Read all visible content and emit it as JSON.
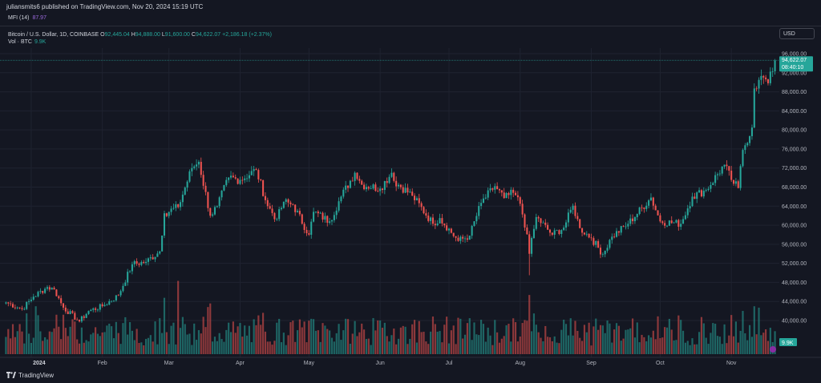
{
  "header": {
    "published": "juliansmits6 published on TradingView.com, Nov 20, 2024 15:19 UTC"
  },
  "mfi": {
    "label": "MFI (14)",
    "value": "87.97"
  },
  "legend": {
    "symbol": "Bitcoin / U.S. Dollar, 1D, COINBASE",
    "o_label": "O",
    "o": "92,445.04",
    "h_label": "H",
    "h": "94,888.00",
    "l_label": "L",
    "l": "91,600.00",
    "c_label": "C",
    "c": "94,622.07",
    "change": "+2,186.18 (+2.37%)",
    "vol_label": "Vol · BTC",
    "vol": "9.9K"
  },
  "currency_button": "USD",
  "footer": {
    "brand": "TradingView"
  },
  "colors": {
    "up": "#26a69a",
    "down": "#ef5350",
    "background": "#141722",
    "grid": "#1f2330"
  },
  "chart_data": {
    "type": "candlestick",
    "title": "Bitcoin / U.S. Dollar, 1D, COINBASE",
    "y_ticks": [
      "96,000.00",
      "92,000.00",
      "88,000.00",
      "84,000.00",
      "80,000.00",
      "76,000.00",
      "72,000.00",
      "68,000.00",
      "64,000.00",
      "60,000.00",
      "56,000.00",
      "52,000.00",
      "48,000.00",
      "44,000.00",
      "40,000.00"
    ],
    "ylim": [
      38000,
      98000
    ],
    "x_ticks": [
      {
        "label": "2024",
        "date": "2024-01-01"
      },
      {
        "label": "Feb",
        "date": "2024-02-01"
      },
      {
        "label": "Mar",
        "date": "2024-03-01"
      },
      {
        "label": "Apr",
        "date": "2024-04-01"
      },
      {
        "label": "May",
        "date": "2024-05-01"
      },
      {
        "label": "Jun",
        "date": "2024-06-01"
      },
      {
        "label": "Jul",
        "date": "2024-07-01"
      },
      {
        "label": "Aug",
        "date": "2024-08-01"
      },
      {
        "label": "Sep",
        "date": "2024-09-01"
      },
      {
        "label": "Oct",
        "date": "2024-10-01"
      },
      {
        "label": "Nov",
        "date": "2024-11-01"
      }
    ],
    "start_date": "2023-12-21",
    "close_anchors": [
      [
        "2023-12-21",
        43800
      ],
      [
        "2023-12-28",
        42400
      ],
      [
        "2024-01-02",
        45000
      ],
      [
        "2024-01-08",
        47000
      ],
      [
        "2024-01-11",
        46500
      ],
      [
        "2024-01-15",
        42700
      ],
      [
        "2024-01-22",
        39800
      ],
      [
        "2024-01-26",
        42000
      ],
      [
        "2024-02-01",
        43000
      ],
      [
        "2024-02-08",
        45300
      ],
      [
        "2024-02-14",
        51800
      ],
      [
        "2024-02-20",
        52300
      ],
      [
        "2024-02-26",
        54500
      ],
      [
        "2024-02-28",
        62500
      ],
      [
        "2024-03-05",
        63800
      ],
      [
        "2024-03-11",
        72000
      ],
      [
        "2024-03-14",
        73300
      ],
      [
        "2024-03-19",
        62000
      ],
      [
        "2024-03-22",
        64000
      ],
      [
        "2024-03-27",
        70000
      ],
      [
        "2024-04-01",
        69500
      ],
      [
        "2024-04-08",
        71600
      ],
      [
        "2024-04-13",
        64000
      ],
      [
        "2024-04-17",
        61300
      ],
      [
        "2024-04-20",
        64900
      ],
      [
        "2024-04-24",
        64300
      ],
      [
        "2024-05-01",
        58000
      ],
      [
        "2024-05-03",
        62800
      ],
      [
        "2024-05-10",
        60800
      ],
      [
        "2024-05-15",
        66000
      ],
      [
        "2024-05-21",
        71000
      ],
      [
        "2024-05-24",
        68500
      ],
      [
        "2024-06-01",
        67700
      ],
      [
        "2024-06-06",
        71000
      ],
      [
        "2024-06-07",
        69300
      ],
      [
        "2024-06-15",
        66200
      ],
      [
        "2024-06-24",
        60300
      ],
      [
        "2024-06-27",
        61500
      ],
      [
        "2024-07-05",
        56700
      ],
      [
        "2024-07-10",
        57800
      ],
      [
        "2024-07-15",
        64700
      ],
      [
        "2024-07-21",
        68200
      ],
      [
        "2024-07-25",
        65700
      ],
      [
        "2024-07-29",
        66800
      ],
      [
        "2024-08-01",
        64500
      ],
      [
        "2024-08-04",
        58100
      ],
      [
        "2024-08-05",
        54000
      ],
      [
        "2024-08-08",
        61700
      ],
      [
        "2024-08-15",
        58000
      ],
      [
        "2024-08-20",
        59500
      ],
      [
        "2024-08-24",
        64100
      ],
      [
        "2024-08-27",
        59400
      ],
      [
        "2024-09-01",
        57300
      ],
      [
        "2024-09-06",
        53900
      ],
      [
        "2024-09-10",
        57600
      ],
      [
        "2024-09-17",
        60300
      ],
      [
        "2024-09-27",
        65800
      ],
      [
        "2024-10-01",
        60800
      ],
      [
        "2024-10-10",
        60300
      ],
      [
        "2024-10-15",
        66000
      ],
      [
        "2024-10-21",
        67400
      ],
      [
        "2024-10-29",
        72700
      ],
      [
        "2024-11-01",
        69500
      ],
      [
        "2024-11-04",
        67800
      ],
      [
        "2024-11-06",
        75800
      ],
      [
        "2024-11-10",
        80500
      ],
      [
        "2024-11-11",
        88700
      ],
      [
        "2024-11-13",
        90500
      ],
      [
        "2024-11-15",
        91000
      ],
      [
        "2024-11-17",
        89800
      ],
      [
        "2024-11-19",
        92300
      ],
      [
        "2024-11-20",
        94622.07
      ]
    ],
    "volume_note": "volume histogram in lower pane, colored by candle direction",
    "volume_anchors": [
      [
        "2024-01-03",
        34000
      ],
      [
        "2024-01-12",
        28000
      ],
      [
        "2024-02-28",
        40000
      ],
      [
        "2024-03-05",
        52000
      ],
      [
        "2024-03-19",
        36000
      ],
      [
        "2024-08-05",
        42000
      ],
      [
        "2024-11-11",
        34000
      ],
      [
        "2024-11-13",
        33000
      ]
    ],
    "last_price_label": "94,622.07",
    "countdown_label": "08:40:10",
    "last_volume_label": "9.9K"
  }
}
